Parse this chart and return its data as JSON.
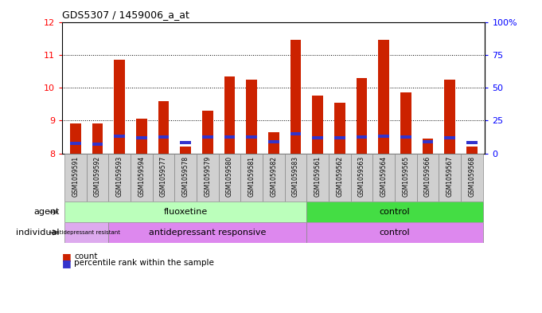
{
  "title": "GDS5307 / 1459006_a_at",
  "samples": [
    "GSM1059591",
    "GSM1059592",
    "GSM1059593",
    "GSM1059594",
    "GSM1059577",
    "GSM1059578",
    "GSM1059579",
    "GSM1059580",
    "GSM1059581",
    "GSM1059582",
    "GSM1059583",
    "GSM1059561",
    "GSM1059562",
    "GSM1059563",
    "GSM1059564",
    "GSM1059565",
    "GSM1059566",
    "GSM1059567",
    "GSM1059568"
  ],
  "count_values": [
    8.9,
    8.9,
    10.85,
    9.05,
    9.6,
    8.2,
    9.3,
    10.35,
    10.25,
    8.65,
    11.45,
    9.75,
    9.55,
    10.3,
    11.45,
    9.85,
    8.45,
    10.25,
    8.2
  ],
  "percentile_values": [
    8.25,
    8.22,
    8.47,
    8.43,
    8.45,
    8.28,
    8.44,
    8.45,
    8.45,
    8.3,
    8.55,
    8.42,
    8.43,
    8.45,
    8.47,
    8.45,
    8.3,
    8.43,
    8.27
  ],
  "ymin": 8.0,
  "ymax": 12.0,
  "yticks": [
    8,
    9,
    10,
    11,
    12
  ],
  "right_yticks": [
    0,
    25,
    50,
    75,
    100
  ],
  "right_yticklabels": [
    "0",
    "25",
    "50",
    "75",
    "100%"
  ],
  "bar_color_red": "#CC2200",
  "bar_color_blue": "#3333CC",
  "bg_color": "#D0D0D0",
  "agent_fluoxetine_color": "#BBFFBB",
  "agent_control_color": "#44DD44",
  "individual_resistant_color": "#DDAAEE",
  "individual_responsive_color": "#DD88EE",
  "individual_control_color": "#DD88EE",
  "legend_count": "count",
  "legend_percentile": "percentile rank within the sample"
}
